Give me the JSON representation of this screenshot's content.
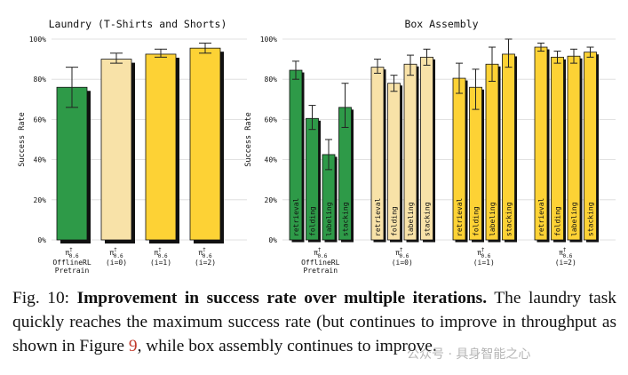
{
  "chart_data": [
    {
      "type": "bar",
      "title": "Laundry (T-Shirts and Shorts)",
      "ylabel": "Success Rate",
      "ylim": [
        0,
        100
      ],
      "yticks": [
        "0%",
        "20%",
        "40%",
        "60%",
        "80%",
        "100%"
      ],
      "grid": true,
      "groups": [
        {
          "label_top": "π†0.6",
          "label_bottom": [
            "OfflineRL",
            "Pretrain"
          ],
          "value": 76,
          "err_low": 66,
          "err_high": 86,
          "color": "#2e9a48"
        },
        {
          "label_top": "π†0.6",
          "label_bottom": [
            "(i=0)"
          ],
          "value": 90,
          "err_low": 88,
          "err_high": 93,
          "color": "#f8e2a8"
        },
        {
          "label_top": "π†0.6",
          "label_bottom": [
            "(i=1)"
          ],
          "value": 92.5,
          "err_low": 91,
          "err_high": 95,
          "color": "#fdd235"
        },
        {
          "label_top": "π†0.6",
          "label_bottom": [
            "(i=2)"
          ],
          "value": 95.5,
          "err_low": 93,
          "err_high": 98,
          "color": "#fdd235"
        }
      ]
    },
    {
      "type": "bar",
      "title": "Box Assembly",
      "ylabel": "Success Rate",
      "ylim": [
        0,
        100
      ],
      "yticks": [
        "0%",
        "20%",
        "40%",
        "60%",
        "80%",
        "100%"
      ],
      "grid": true,
      "categories": [
        "retrieval",
        "folding",
        "labeling",
        "stacking"
      ],
      "groups": [
        {
          "label_top": "π†0.6",
          "label_bottom": [
            "OfflineRL",
            "Pretrain"
          ],
          "color": "#2e9a48",
          "values": [
            84.5,
            60.5,
            42.5,
            66
          ],
          "err_low": [
            80,
            55,
            35,
            56
          ],
          "err_high": [
            89,
            67,
            50,
            78
          ]
        },
        {
          "label_top": "π†0.6",
          "label_bottom": [
            "(i=0)"
          ],
          "color": "#f8e2a8",
          "values": [
            86,
            78,
            87.5,
            91
          ],
          "err_low": [
            83,
            74,
            82,
            87
          ],
          "err_high": [
            90,
            82,
            92,
            95
          ]
        },
        {
          "label_top": "π†0.6",
          "label_bottom": [
            "(i=1)"
          ],
          "color": "#fdd235",
          "values": [
            80.5,
            76,
            87.5,
            92.5
          ],
          "err_low": [
            73,
            65,
            79,
            86
          ],
          "err_high": [
            88,
            85,
            96,
            100
          ]
        },
        {
          "label_top": "π†0.6",
          "label_bottom": [
            "(i=2)"
          ],
          "color": "#fdd235",
          "values": [
            96,
            91,
            91.5,
            93.5
          ],
          "err_low": [
            94,
            88,
            88,
            91
          ],
          "err_high": [
            98,
            94,
            95,
            96
          ]
        }
      ]
    }
  ],
  "caption": {
    "prefix": "Fig. 10: ",
    "bold": "Improvement in success rate over multiple iterations.",
    "text_before_ref": " The laundry task quickly reaches the maximum success rate (but continues to improve in throughput as shown in Figure ",
    "ref": "9",
    "text_after_ref": ", while box assembly continues to improve."
  },
  "watermark": "公众号 · 具身智能之心"
}
